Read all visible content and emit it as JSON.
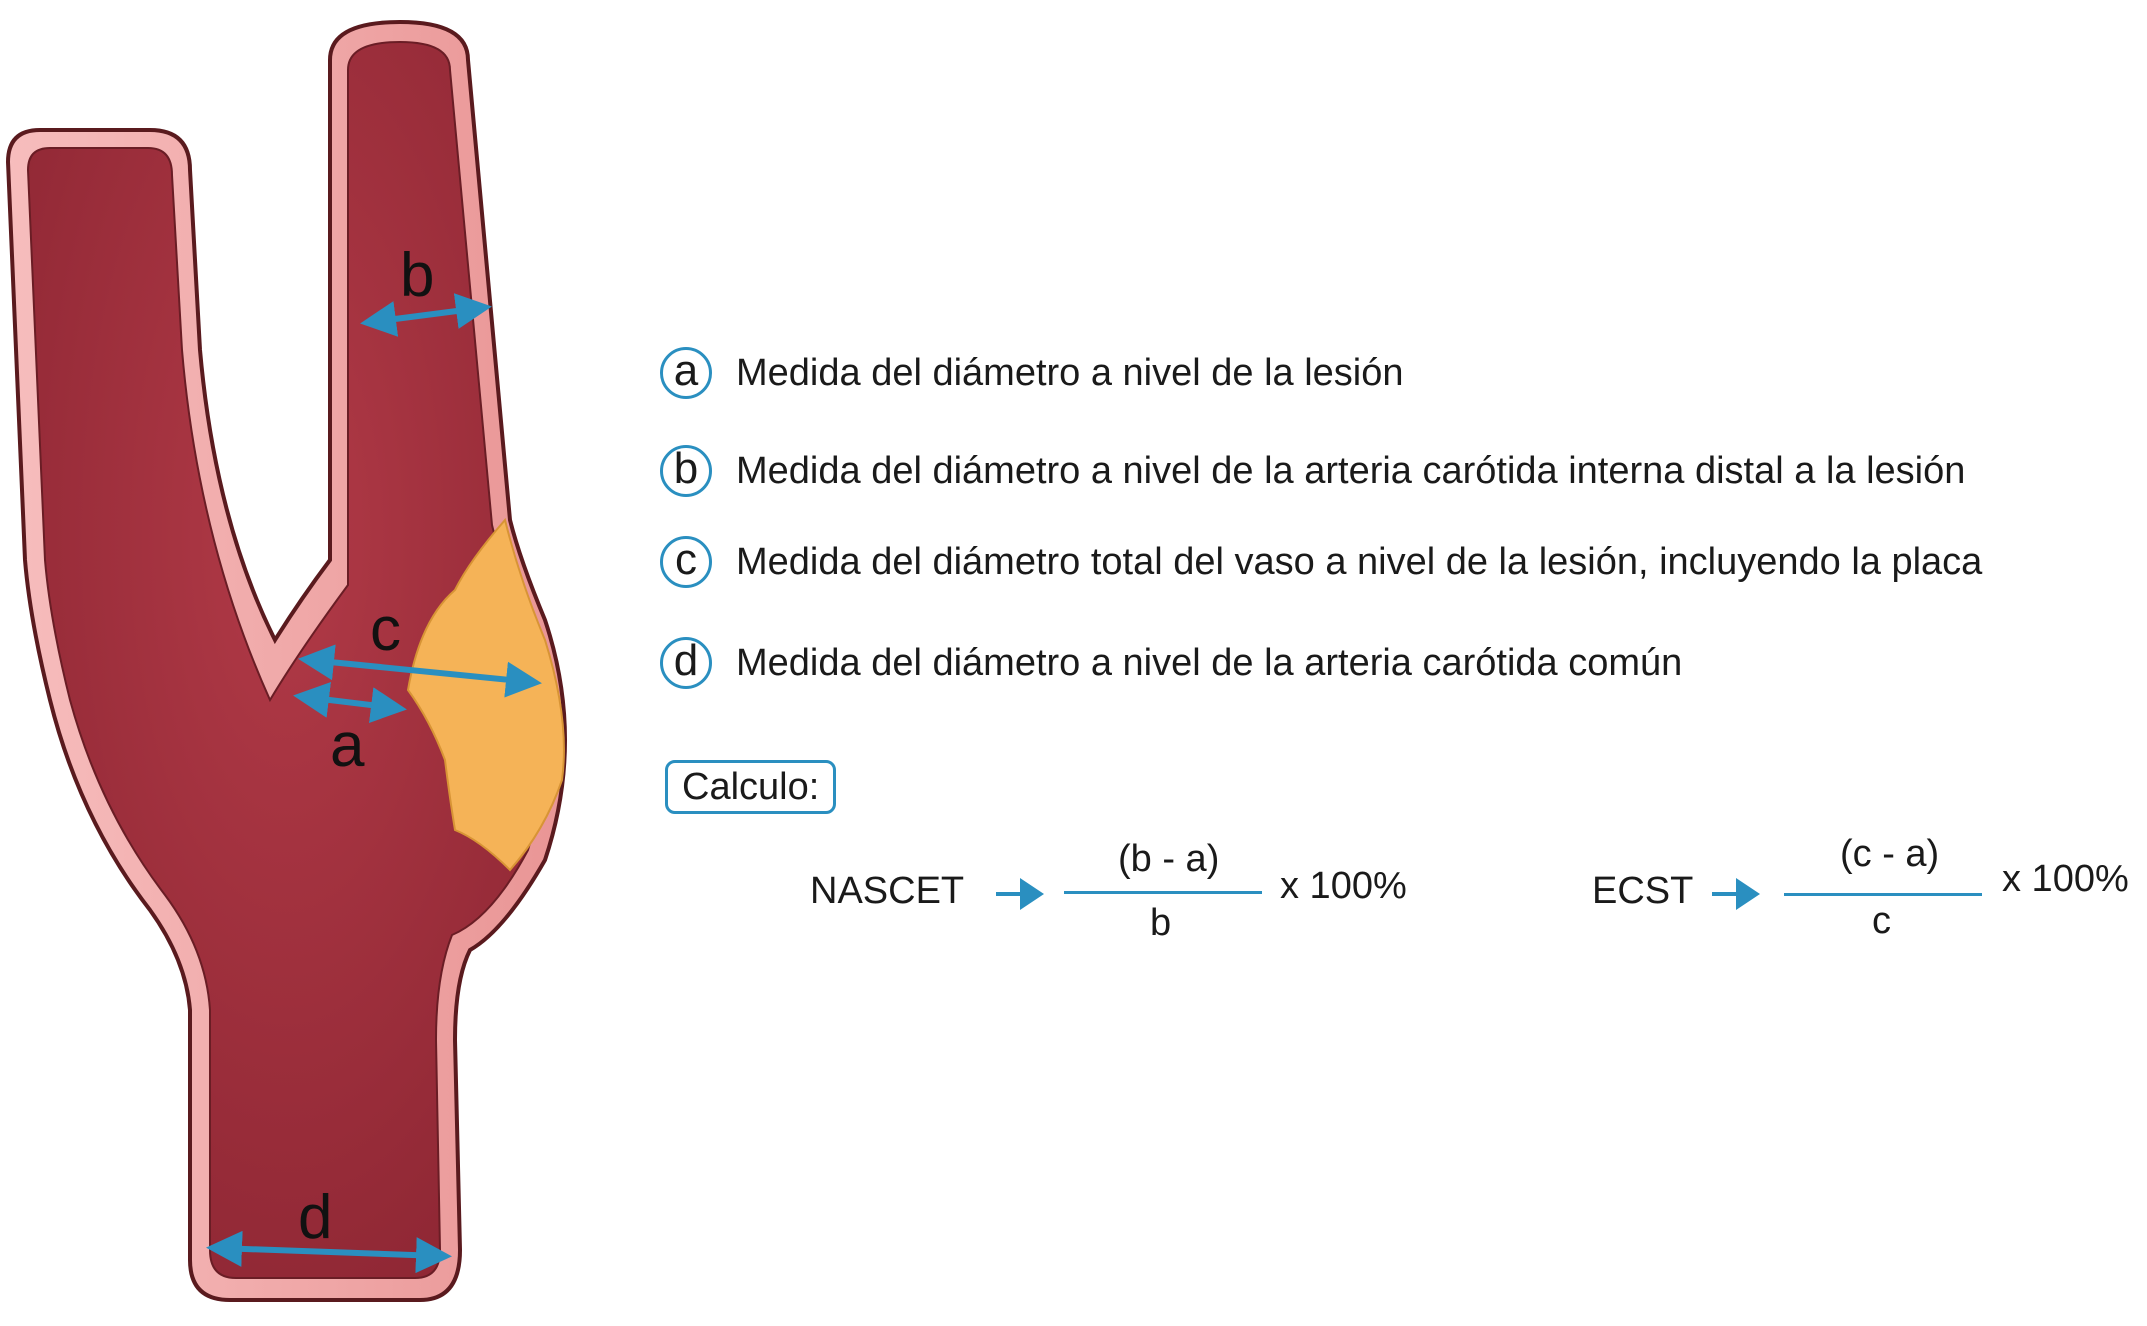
{
  "diagram": {
    "labels": {
      "a": "a",
      "b": "b",
      "c": "c",
      "d": "d"
    }
  },
  "legend": [
    {
      "key": "a",
      "text": "Medida del diámetro a nivel de la lesión"
    },
    {
      "key": "b",
      "text": "Medida del diámetro a nivel de la arteria carótida interna distal a la lesión"
    },
    {
      "key": "c",
      "text": "Medida del diámetro total del vaso a nivel de la lesión, incluyendo la placa"
    },
    {
      "key": "d",
      "text": "Medida del diámetro a nivel de la arteria carótida común"
    }
  ],
  "calc": {
    "label": "Calculo:",
    "nascet": {
      "name": "NASCET",
      "numerator": "(b - a)",
      "denominator": "b",
      "multiplier": "x 100%"
    },
    "ecst": {
      "name": "ECST",
      "numerator": "(c - a)",
      "denominator": "c",
      "multiplier": "x 100%"
    }
  },
  "colors": {
    "vessel_fill": "#a8323f",
    "vessel_wall": "#f0a5a5",
    "vessel_outline": "#5a1a1e",
    "plaque": "#f5b357",
    "accent": "#2a8fc0"
  }
}
